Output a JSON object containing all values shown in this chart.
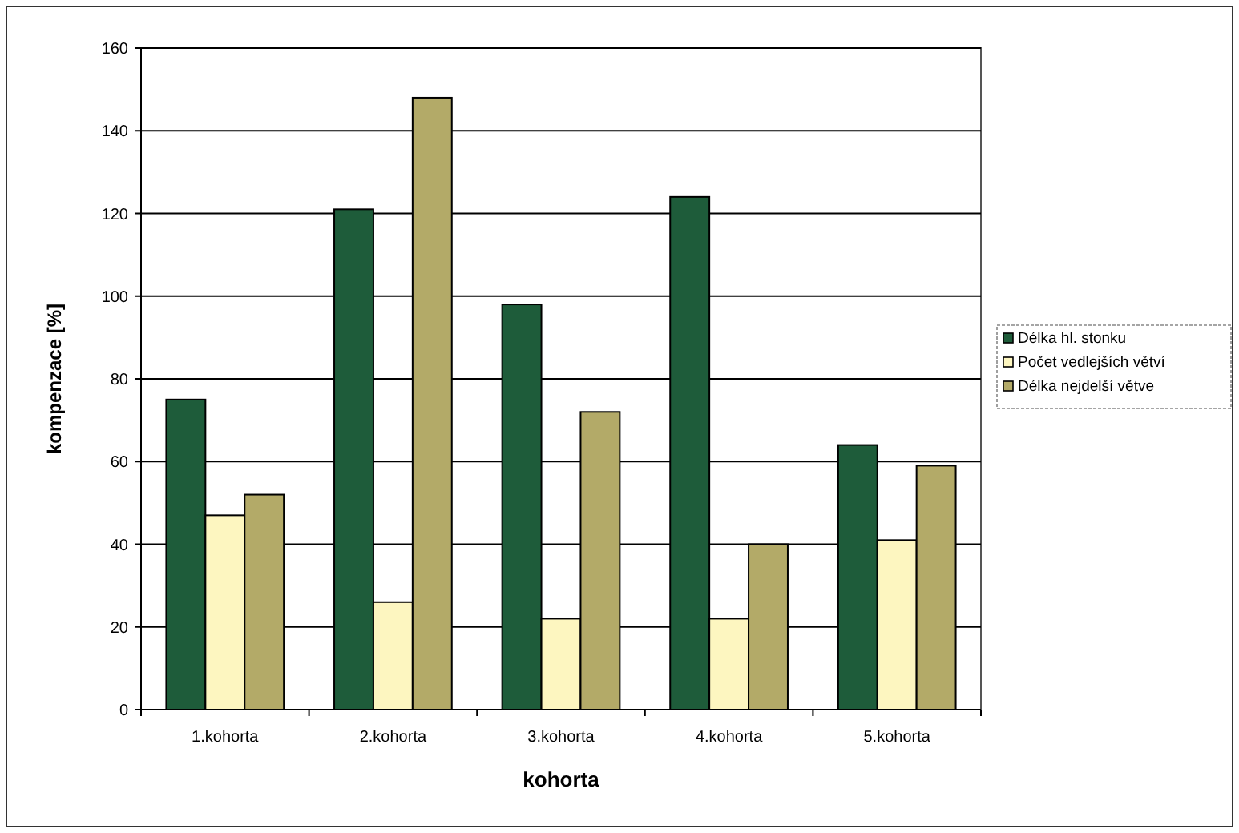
{
  "chart_data": {
    "type": "bar",
    "xlabel": "kohorta",
    "ylabel": "kompenzace [%]",
    "categories": [
      "1.kohorta",
      "2.kohorta",
      "3.kohorta",
      "4.kohorta",
      "5.kohorta"
    ],
    "series": [
      {
        "name": "Délka hl. stonku",
        "color": "#1e5c3a",
        "values": [
          75,
          121,
          98,
          124,
          64
        ]
      },
      {
        "name": "Počet vedlejších větví",
        "color": "#fdf6c0",
        "values": [
          47,
          26,
          22,
          22,
          41
        ]
      },
      {
        "name": "Délka nejdelší větve",
        "color": "#b3aa68",
        "values": [
          52,
          148,
          72,
          40,
          59
        ]
      }
    ],
    "ylim": [
      0,
      160
    ],
    "yticks": [
      0,
      20,
      40,
      60,
      80,
      100,
      120,
      140,
      160
    ],
    "grid": "y",
    "legend": "right"
  }
}
